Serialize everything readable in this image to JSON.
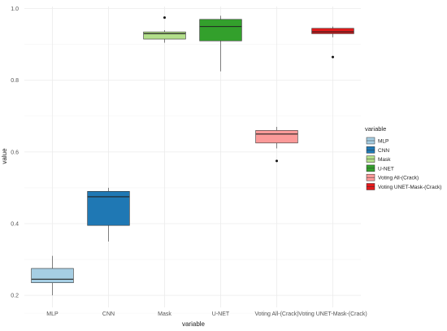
{
  "chart_data": {
    "type": "boxplot",
    "xlabel": "variable",
    "ylabel": "value",
    "ylim": [
      0.18,
      1.0
    ],
    "y_ticks": [
      0.2,
      0.4,
      0.6,
      0.8,
      1.0
    ],
    "y_tick_labels": [
      "0.2",
      "0.4",
      "0.6",
      "0.8",
      "1.0"
    ],
    "grid": true,
    "legend": {
      "title": "variable",
      "position": "right"
    },
    "categories": [
      "MLP",
      "CNN",
      "Mask",
      "U-NET",
      "Voting All-(Crack)",
      "Voting UNET-Mask-(Crack)"
    ],
    "series": [
      {
        "name": "MLP",
        "color": "#a6cee3",
        "whisker_low": 0.2,
        "q1": 0.235,
        "median": 0.245,
        "q3": 0.275,
        "whisker_high": 0.31,
        "outliers": []
      },
      {
        "name": "CNN",
        "color": "#1f78b4",
        "whisker_low": 0.35,
        "q1": 0.395,
        "median": 0.475,
        "q3": 0.49,
        "whisker_high": 0.5,
        "outliers": []
      },
      {
        "name": "Mask",
        "color": "#b2df8a",
        "whisker_low": 0.905,
        "q1": 0.915,
        "median": 0.93,
        "q3": 0.935,
        "whisker_high": 0.94,
        "outliers": [
          0.975
        ]
      },
      {
        "name": "U-NET",
        "color": "#33a02c",
        "whisker_low": 0.825,
        "q1": 0.91,
        "median": 0.95,
        "q3": 0.97,
        "whisker_high": 0.98,
        "outliers": []
      },
      {
        "name": "Voting All-(Crack)",
        "color": "#fb9a99",
        "whisker_low": 0.61,
        "q1": 0.625,
        "median": 0.65,
        "q3": 0.66,
        "whisker_high": 0.67,
        "outliers": [
          0.575
        ]
      },
      {
        "name": "Voting UNET-Mask-(Crack)",
        "color": "#e31a1c",
        "whisker_low": 0.92,
        "q1": 0.93,
        "median": 0.935,
        "q3": 0.945,
        "whisker_high": 0.95,
        "outliers": [
          0.865
        ]
      }
    ]
  }
}
